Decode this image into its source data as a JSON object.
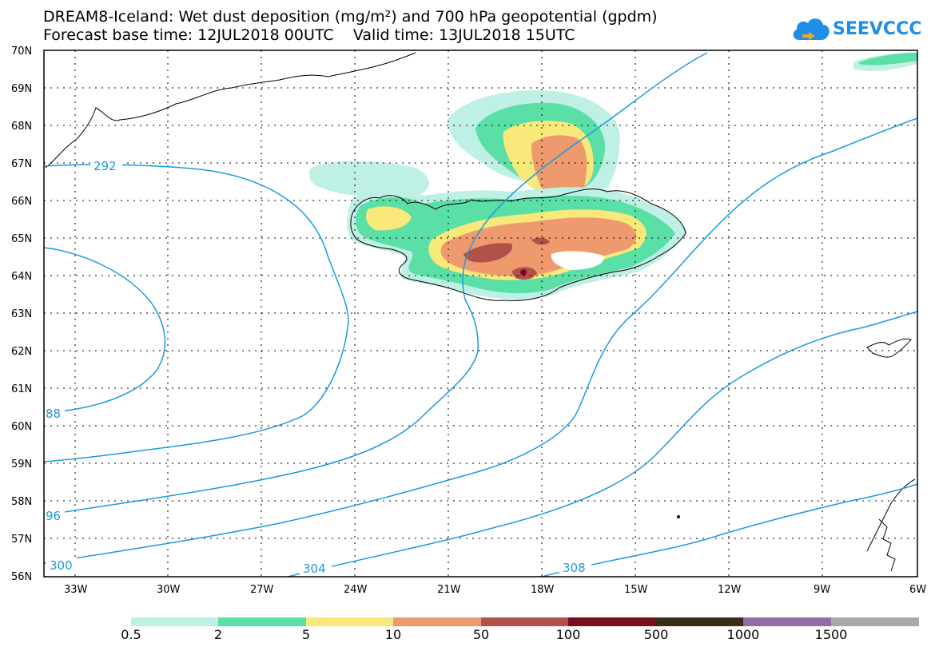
{
  "header": {
    "title_line1": "DREAM8-Iceland: Wet dust deposition (mg/m²) and 700 hPa geopotential (gpdm)",
    "title_line2": "Forecast base time: 12JUL2018 00UTC    Valid time: 13JUL2018 15UTC"
  },
  "logo": {
    "text": "SEEVCCC",
    "icon": "cloud-icon",
    "color": "#1f8fe6"
  },
  "map": {
    "lat_labels": [
      "70N",
      "69N",
      "68N",
      "67N",
      "66N",
      "65N",
      "64N",
      "63N",
      "62N",
      "61N",
      "60N",
      "59N",
      "58N",
      "57N",
      "56N"
    ],
    "lon_labels": [
      "33W",
      "30W",
      "27W",
      "24W",
      "21W",
      "18W",
      "15W",
      "12W",
      "9W",
      "6W"
    ],
    "contour_labels": [
      "292",
      "88",
      "96",
      "300",
      "304",
      "308"
    ],
    "contour_color": "#1a9bdc",
    "grid": true
  },
  "colorbar": {
    "labels": [
      "0.5",
      "2",
      "5",
      "10",
      "50",
      "100",
      "500",
      "1000",
      "1500"
    ],
    "colors": [
      "#bff0e6",
      "#5adfa6",
      "#f8e97a",
      "#ef9a6e",
      "#b0524a",
      "#7a0d1e",
      "#3a2a1a",
      "#8f6fa6",
      "#a9a9a9"
    ]
  }
}
